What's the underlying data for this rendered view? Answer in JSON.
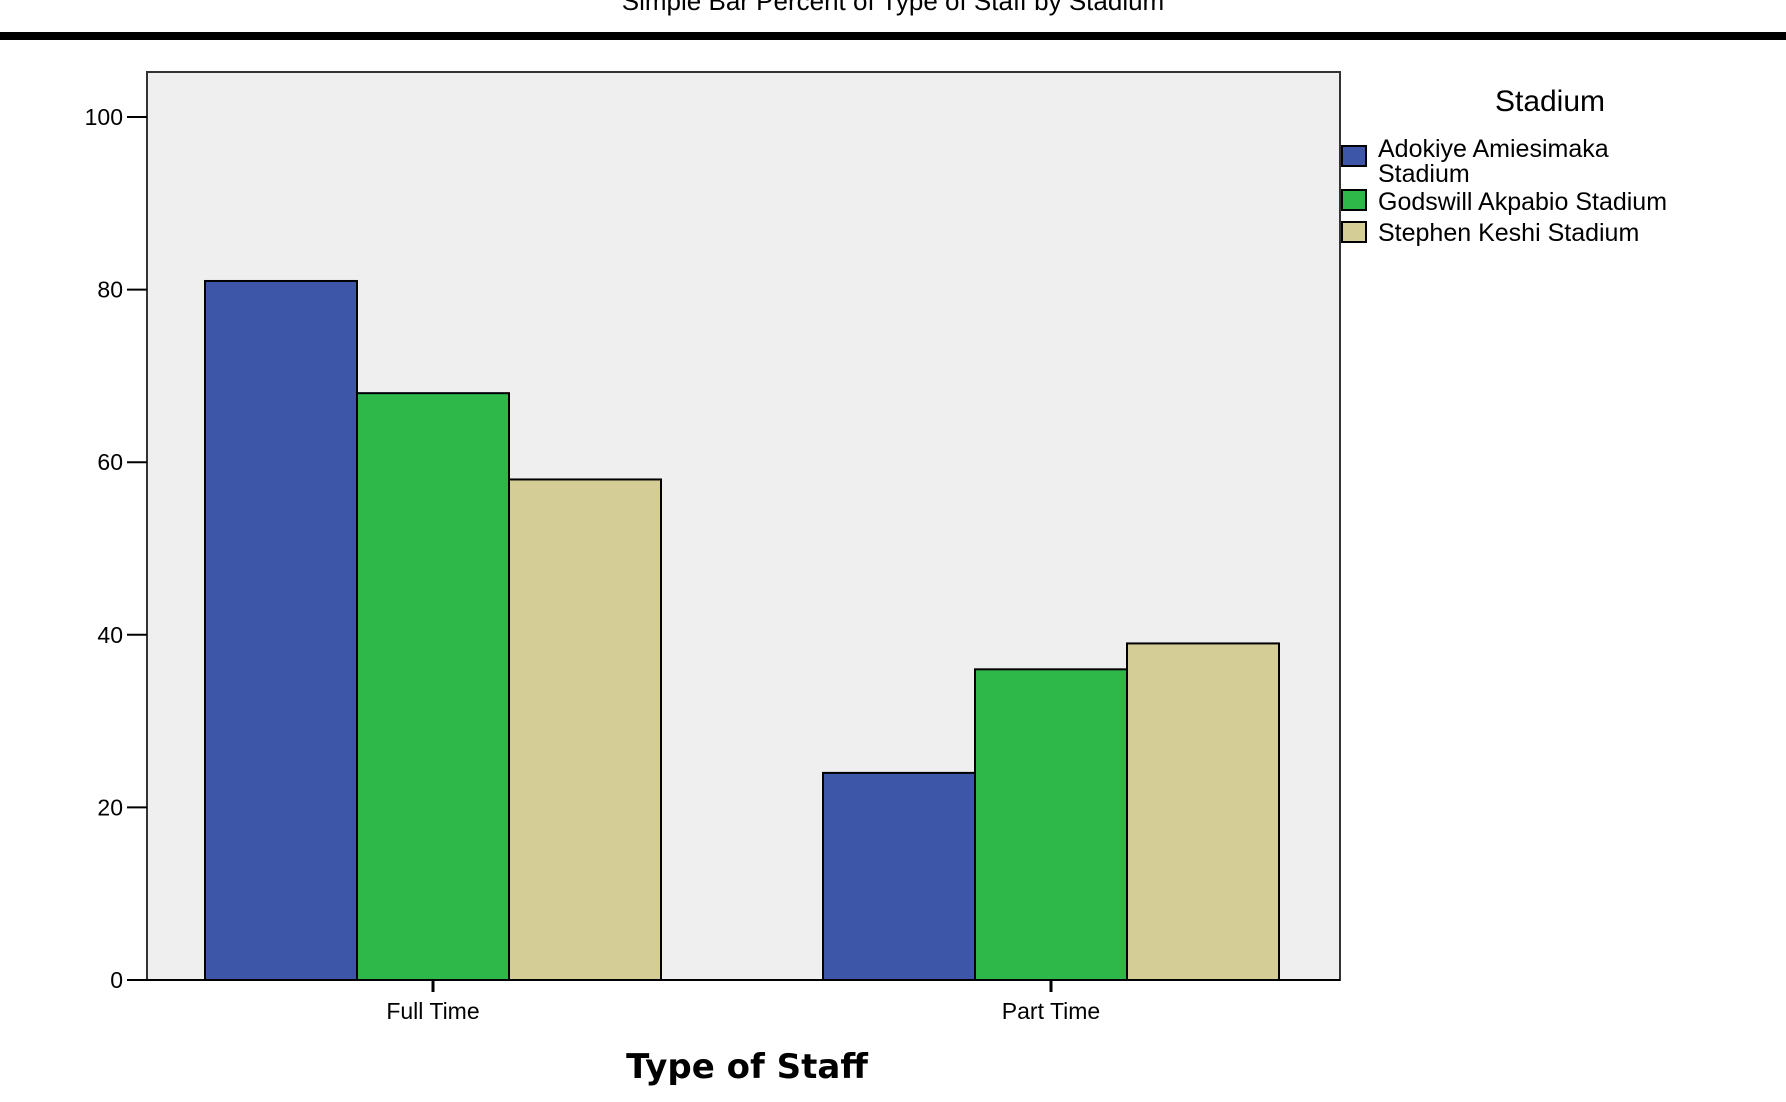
{
  "header": {
    "cut_title": "Simple Bar Percent of Type of Staff by Stadium"
  },
  "colors": {
    "plot_background": "#efefef",
    "series": [
      "#3d56a8",
      "#2fb84a",
      "#d4cd96"
    ],
    "stroke": "#000000"
  },
  "chart_data": {
    "type": "bar",
    "title": "",
    "xlabel": "Type of Staff",
    "ylabel": "",
    "categories": [
      "Full Time",
      "Part Time"
    ],
    "ylim": [
      0,
      100
    ],
    "yticks": [
      0,
      20,
      40,
      60,
      80,
      100
    ],
    "grid": false,
    "legend": {
      "title": "Stadium",
      "placement": "right"
    },
    "series": [
      {
        "name": "Adokiye Amiesimaka Stadium",
        "name_lines": [
          "Adokiye Amiesimaka",
          "Stadium"
        ],
        "values": [
          81,
          24
        ]
      },
      {
        "name": "Godswill Akpabio Stadium",
        "name_lines": [
          "Godswill Akpabio Stadium"
        ],
        "values": [
          68,
          36
        ]
      },
      {
        "name": "Stephen Keshi Stadium",
        "name_lines": [
          "Stephen Keshi Stadium"
        ],
        "values": [
          58,
          39
        ]
      }
    ]
  }
}
